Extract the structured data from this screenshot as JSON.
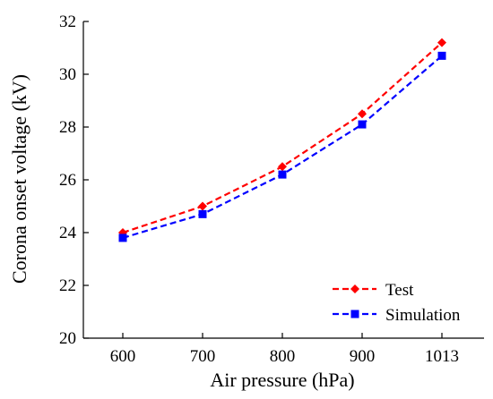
{
  "chart_data": {
    "type": "line",
    "categories": [
      "600",
      "700",
      "800",
      "900",
      "1013"
    ],
    "series": [
      {
        "name": "Test",
        "values": [
          24.0,
          25.0,
          26.5,
          28.5,
          31.2
        ],
        "color": "#ff0000",
        "marker": "diamond",
        "line_style": "dashed"
      },
      {
        "name": "Simulation",
        "values": [
          23.8,
          24.7,
          26.2,
          28.1,
          30.7
        ],
        "color": "#0000ff",
        "marker": "square",
        "line_style": "dashed"
      }
    ],
    "xlabel": "Air pressure (hPa)",
    "ylabel": "Corona onset voltage (kV)",
    "ylim": [
      20,
      32
    ],
    "yticks": [
      "20",
      "22",
      "24",
      "26",
      "28",
      "30",
      "32"
    ],
    "grid": false,
    "legend_position": "bottom-right"
  }
}
